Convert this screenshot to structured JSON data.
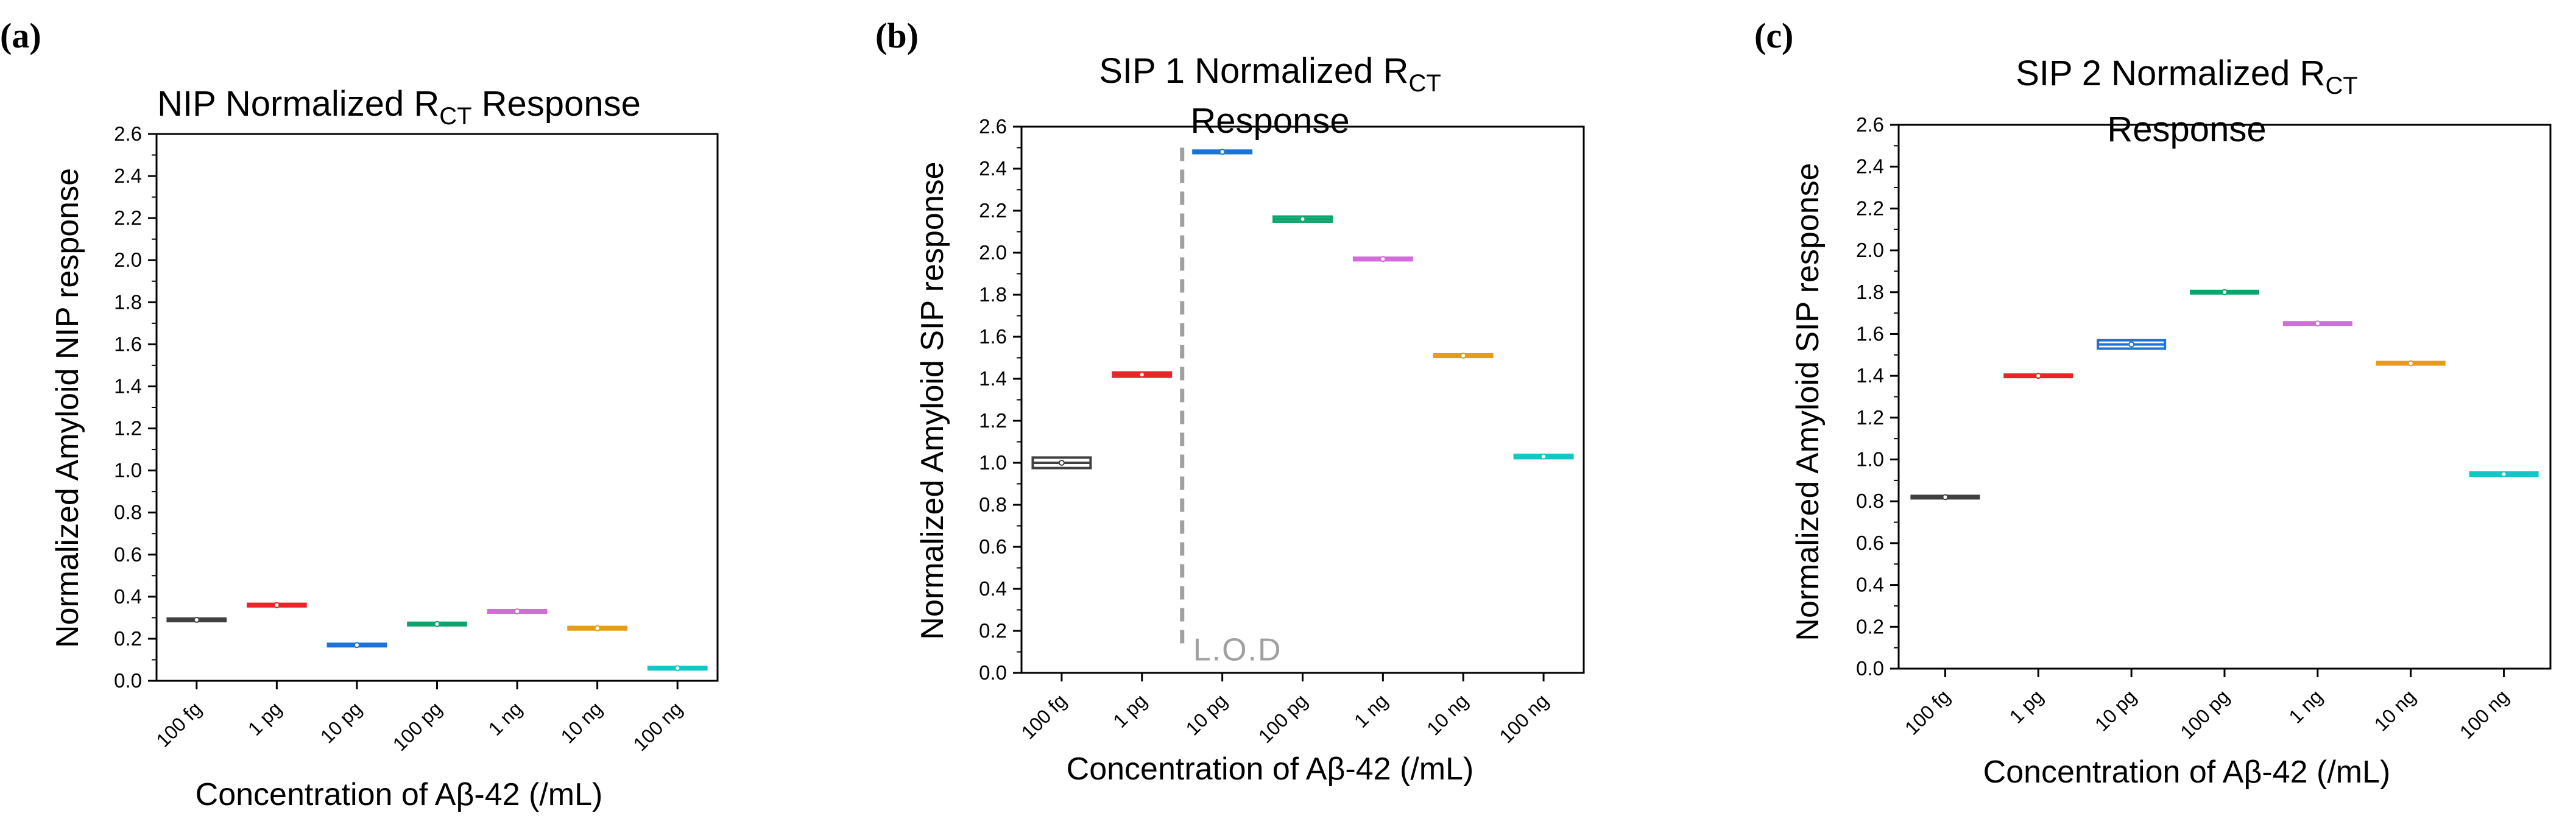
{
  "chart_data": [
    {
      "panel_label": "(a)",
      "type": "box",
      "title_main": "NIP Normalized R",
      "title_sub": "CT",
      "title_rest": " Response",
      "xlabel": "Concentration of Aβ-42 (/mL)",
      "ylabel": "Normalized Amyloid NIP response",
      "ylim": [
        0,
        2.6
      ],
      "yticks": [
        "0.0",
        "0.2",
        "0.4",
        "0.6",
        "0.8",
        "1.0",
        "1.2",
        "1.4",
        "1.6",
        "1.8",
        "2.0",
        "2.2",
        "2.4",
        "2.6"
      ],
      "categories": [
        "100 fg",
        "1 pg",
        "10 pg",
        "100 pg",
        "1 ng",
        "10 ng",
        "100 ng"
      ],
      "values": [
        0.29,
        0.36,
        0.17,
        0.27,
        0.33,
        0.25,
        0.06
      ],
      "box_half": [
        0.006,
        0.006,
        0.004,
        0.006,
        0.006,
        0.006,
        0.005
      ],
      "colors": [
        "#404040",
        "#e8262a",
        "#1a73d9",
        "#0aa46c",
        "#d36bd9",
        "#e69b1a",
        "#14c6c6"
      ]
    },
    {
      "panel_label": "(b)",
      "type": "box",
      "title_main": "SIP 1 Normalized R",
      "title_sub": "CT",
      "title_line2": "Response",
      "xlabel": "Concentration of Aβ-42 (/mL)",
      "ylabel": "Normalized Amyloid SIP response",
      "ylim": [
        0,
        2.6
      ],
      "yticks": [
        "0.0",
        "0.2",
        "0.4",
        "0.6",
        "0.8",
        "1.0",
        "1.2",
        "1.4",
        "1.6",
        "1.8",
        "2.0",
        "2.2",
        "2.4",
        "2.6"
      ],
      "categories": [
        "100 fg",
        "1 pg",
        "10 pg",
        "100 pg",
        "1 ng",
        "10 ng",
        "100 ng"
      ],
      "values": [
        1.0,
        1.42,
        2.48,
        2.16,
        1.97,
        1.51,
        1.03
      ],
      "box_half": [
        0.025,
        0.01,
        0.006,
        0.012,
        0.006,
        0.006,
        0.008
      ],
      "colors": [
        "#404040",
        "#e8262a",
        "#1a73d9",
        "#0aa46c",
        "#d36bd9",
        "#e69b1a",
        "#14c6c6"
      ],
      "lod_label": "L.O.D",
      "lod_between": [
        1,
        2
      ]
    },
    {
      "panel_label": "(c)",
      "type": "box",
      "title_main": "SIP 2 Normalized R",
      "title_sub": "CT",
      "title_line2": "Response",
      "xlabel": "Concentration of Aβ-42 (/mL)",
      "ylabel": "Normalized Amyloid SIP response",
      "ylim": [
        0,
        2.6
      ],
      "yticks": [
        "0.0",
        "0.2",
        "0.4",
        "0.6",
        "0.8",
        "1.0",
        "1.2",
        "1.4",
        "1.6",
        "1.8",
        "2.0",
        "2.2",
        "2.4",
        "2.6"
      ],
      "categories": [
        "100 fg",
        "1 pg",
        "10 pg",
        "100 pg",
        "1 ng",
        "10 ng",
        "100 ng"
      ],
      "values": [
        0.82,
        1.4,
        1.55,
        1.8,
        1.65,
        1.46,
        0.93
      ],
      "box_half": [
        0.005,
        0.005,
        0.02,
        0.005,
        0.005,
        0.005,
        0.008
      ],
      "colors": [
        "#404040",
        "#e8262a",
        "#1a73d9",
        "#0aa46c",
        "#d36bd9",
        "#e69b1a",
        "#14c6c6"
      ]
    }
  ]
}
